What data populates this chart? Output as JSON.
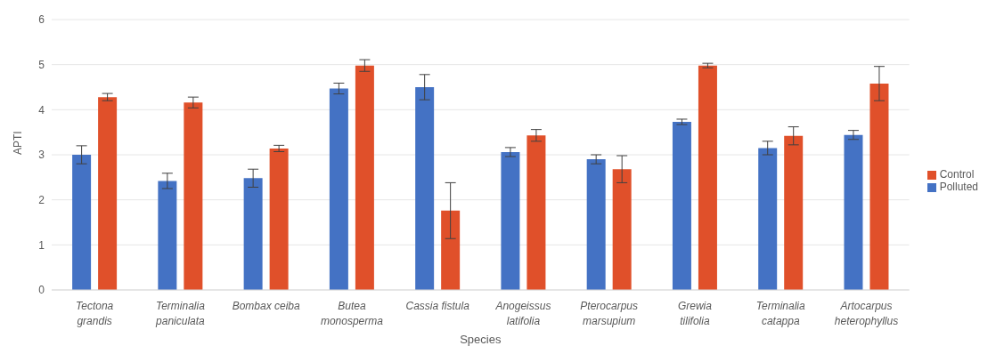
{
  "chart_data": {
    "type": "bar",
    "xlabel": "Species",
    "ylabel": "APTI",
    "categories": [
      "Tectona grandis",
      "Terminalia paniculata",
      "Bombax ceiba",
      "Butea monosperma",
      "Cassia fistula",
      "Anogeissus latifolia",
      "Pterocarpus marsupium",
      "Grewia tilifolia",
      "Terminalia catappa",
      "Artocarpus heterophyllus"
    ],
    "series": [
      {
        "name": "Polluted",
        "color": "#4472c4",
        "values": [
          3.0,
          2.42,
          2.48,
          4.47,
          4.5,
          3.06,
          2.9,
          3.73,
          3.15,
          3.44
        ],
        "errors": [
          0.2,
          0.17,
          0.2,
          0.12,
          0.28,
          0.1,
          0.1,
          0.06,
          0.15,
          0.1
        ]
      },
      {
        "name": "Control",
        "color": "#e0502a",
        "values": [
          4.28,
          4.16,
          3.14,
          4.98,
          1.76,
          3.43,
          2.68,
          4.98,
          3.42,
          4.58
        ],
        "errors": [
          0.08,
          0.12,
          0.07,
          0.13,
          0.62,
          0.13,
          0.3,
          0.05,
          0.2,
          0.38
        ]
      }
    ],
    "ylim": [
      0,
      6
    ],
    "yticks": [
      0,
      1,
      2,
      3,
      4,
      5,
      6
    ],
    "grid": "y",
    "legend": "right"
  }
}
